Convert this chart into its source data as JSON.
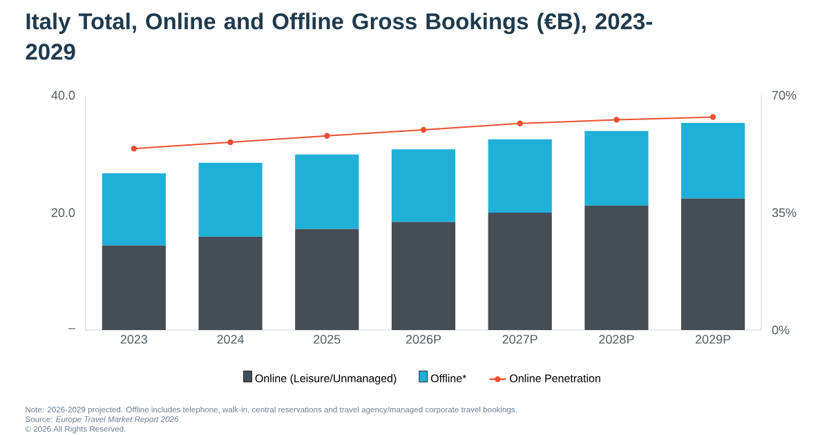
{
  "chart_data": {
    "type": "bar",
    "title": "Italy Total, Online and Offline Gross Bookings (€B), 2023-2029",
    "categories": [
      "2023",
      "2024",
      "2025",
      "2026P",
      "2027P",
      "2028P",
      "2029P"
    ],
    "stacked": true,
    "series": [
      {
        "name": "Online (Leisure/Unmanaged)",
        "color": "#454d55",
        "values": [
          14.4,
          15.9,
          17.2,
          18.4,
          20.0,
          21.2,
          22.4
        ]
      },
      {
        "name": "Offline*",
        "color": "#1fb0d8",
        "values": [
          12.3,
          12.6,
          12.7,
          12.4,
          12.5,
          12.7,
          12.9
        ]
      },
      {
        "name": "Online Penetration",
        "type": "line",
        "axis": "y2",
        "color": "#f04e2f",
        "marker": "circle",
        "values": [
          54.1,
          56.0,
          57.9,
          59.7,
          61.6,
          62.7,
          63.5
        ]
      }
    ],
    "ylim": [
      0,
      40
    ],
    "yticks": [
      {
        "value": 0,
        "label": "–"
      },
      {
        "value": 20,
        "label": "20.0"
      },
      {
        "value": 40,
        "label": "40.0"
      }
    ],
    "y2lim": [
      0,
      70
    ],
    "y2ticks": [
      {
        "value": 0,
        "label": "0%"
      },
      {
        "value": 35,
        "label": "35%"
      },
      {
        "value": 70,
        "label": "70%"
      }
    ],
    "legend": "bottom",
    "annotations": [
      "Note: 2026-2029 projected. Offline includes telephone, walk-in, central reservations and travel agency/managed corporate travel bookings.",
      "Source: *Europe Travel Market Report 2026*",
      "© 2026 All Rights Reserved."
    ]
  }
}
